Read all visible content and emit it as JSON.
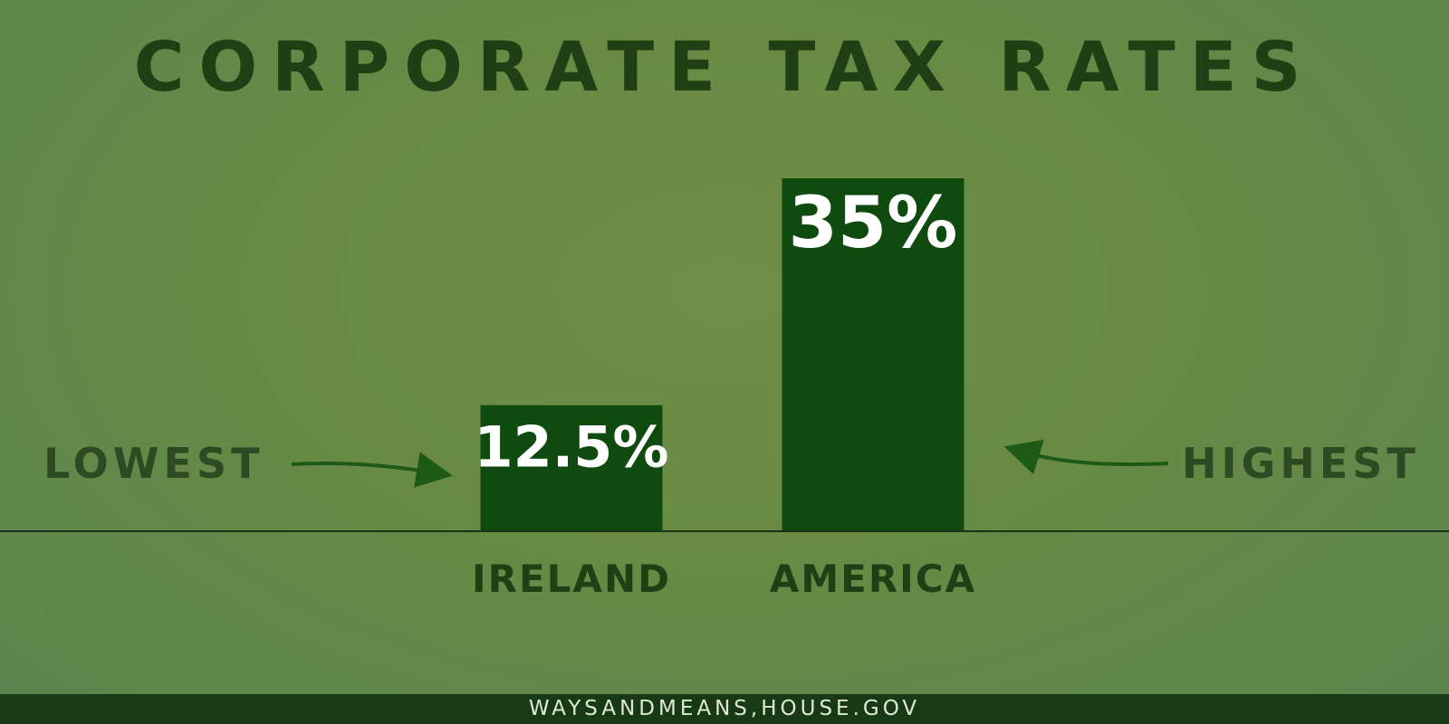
{
  "chart_data": {
    "type": "bar",
    "title": "CORPORATE TAX RATES",
    "categories": [
      "IRELAND",
      "AMERICA"
    ],
    "values": [
      12.5,
      35
    ],
    "value_labels": [
      "12.5%",
      "35%"
    ],
    "ylim": [
      0,
      35
    ],
    "grid": false,
    "annotations": {
      "lowest": "LOWEST",
      "highest": "HIGHEST"
    }
  },
  "colors": {
    "background": "#6a8c46",
    "bar": "#0f4a0f",
    "title": "#1f3f14",
    "footer": "#173a14"
  },
  "footer": {
    "text": "WAYSANDMEANS,HOUSE.GOV"
  }
}
